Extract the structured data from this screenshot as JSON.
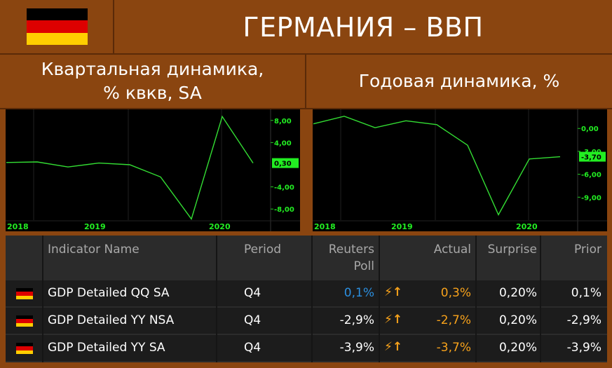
{
  "header": {
    "title": "ГЕРМАНИЯ – ВВП"
  },
  "panels": {
    "left_title": "Квартальная динамика,\n% квкв, SA",
    "right_title": "Годовая динамика, %"
  },
  "colors": {
    "flag": [
      "#000000",
      "#dd0000",
      "#ffce00"
    ],
    "line": "#33dd33",
    "marker": "#22ee22",
    "positive": "#2b8fe0",
    "actual": "#f7a21b"
  },
  "chart_data": [
    {
      "type": "line",
      "x": [
        "2017-Q3",
        "2017-Q4",
        "2018-Q1",
        "2018-Q2",
        "2018-Q3",
        "2018-Q4",
        "2019-Q1",
        "2019-Q2",
        "2019-Q3"
      ],
      "series": [
        {
          "values": [
            0.4,
            0.5,
            -0.4,
            0.3,
            0.0,
            -2.2,
            -9.8,
            8.7,
            0.3
          ]
        }
      ],
      "x_ticks": [
        "2018",
        "2019",
        "2020"
      ],
      "y_ticks": [
        "8,00",
        "4,00",
        "0,30",
        "-4,00",
        "-8,00"
      ],
      "y_tick_values": [
        8,
        4,
        0.3,
        -4,
        -8
      ],
      "ylim": [
        -10,
        10
      ],
      "last_value_label": "0,30",
      "last_value": 0.3
    },
    {
      "type": "line",
      "x": [
        "2017-Q3",
        "2017-Q4",
        "2018-Q1",
        "2018-Q2",
        "2018-Q3",
        "2018-Q4",
        "2019-Q1",
        "2019-Q2",
        "2019-Q3"
      ],
      "series": [
        {
          "values": [
            0.6,
            1.6,
            0.1,
            1.0,
            0.5,
            -2.2,
            -11.3,
            -4.0,
            -3.7
          ]
        }
      ],
      "x_ticks": [
        "2018",
        "2019",
        "2020"
      ],
      "y_ticks": [
        "0,00",
        "-3,00",
        "-3,70",
        "-6,00",
        "-9,00"
      ],
      "y_tick_values": [
        0,
        -3,
        -3.7,
        -6,
        -9
      ],
      "ylim": [
        -12,
        2.5
      ],
      "last_value_label": "-3,70",
      "last_value": -3.7
    }
  ],
  "table": {
    "headers": {
      "indicator": "Indicator Name",
      "period": "Period",
      "poll_1": "Reuters",
      "poll_2": "Poll",
      "actual": "Actual",
      "surprise": "Surprise",
      "prior": "Prior"
    },
    "arrow_icon": "⚡↑",
    "rows": [
      {
        "name": "GDP Detailed QQ SA",
        "period": "Q4",
        "poll": "0,1%",
        "actual": "0,3%",
        "surprise": "0,20%",
        "prior": "0,1%",
        "poll_color": "#2b8fe0"
      },
      {
        "name": "GDP Detailed YY NSA",
        "period": "Q4",
        "poll": "-2,9%",
        "actual": "-2,7%",
        "surprise": "0,20%",
        "prior": "-2,9%",
        "poll_color": "#ffffff"
      },
      {
        "name": "GDP Detailed YY SA",
        "period": "Q4",
        "poll": "-3,9%",
        "actual": "-3,7%",
        "surprise": "0,20%",
        "prior": "-3,9%",
        "poll_color": "#ffffff"
      }
    ]
  }
}
